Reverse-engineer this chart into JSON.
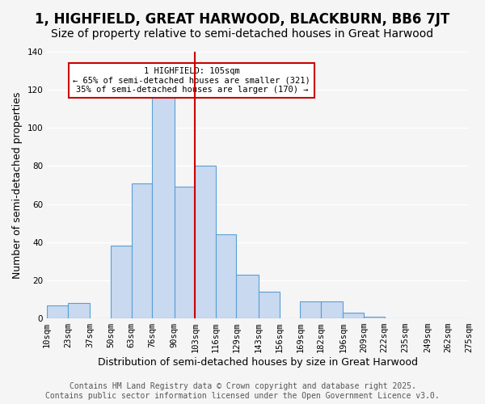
{
  "title": "1, HIGHFIELD, GREAT HARWOOD, BLACKBURN, BB6 7JT",
  "subtitle": "Size of property relative to semi-detached houses in Great Harwood",
  "xlabel": "Distribution of semi-detached houses by size in Great Harwood",
  "ylabel": "Number of semi-detached properties",
  "bar_color": "#c8d9f0",
  "bar_edge_color": "#5a9fd4",
  "background_color": "#f5f5f5",
  "grid_color": "#ffffff",
  "vline_value": 103,
  "vline_color": "#cc0000",
  "annotation_text": "1 HIGHFIELD: 105sqm\n← 65% of semi-detached houses are smaller (321)\n35% of semi-detached houses are larger (170) →",
  "annotation_box_color": "#ffffff",
  "annotation_box_edge_color": "#cc0000",
  "bin_edges": [
    10,
    23,
    37,
    50,
    63,
    76,
    90,
    103,
    116,
    129,
    143,
    156,
    169,
    182,
    196,
    209,
    222,
    235,
    249,
    262,
    275
  ],
  "bin_counts": [
    7,
    8,
    0,
    38,
    71,
    118,
    69,
    80,
    44,
    23,
    14,
    0,
    9,
    9,
    3,
    1,
    0,
    0,
    0,
    0
  ],
  "tick_labels": [
    "10sqm",
    "23sqm",
    "37sqm",
    "50sqm",
    "63sqm",
    "76sqm",
    "90sqm",
    "103sqm",
    "116sqm",
    "129sqm",
    "143sqm",
    "156sqm",
    "169sqm",
    "182sqm",
    "196sqm",
    "209sqm",
    "222sqm",
    "235sqm",
    "249sqm",
    "262sqm",
    "275sqm"
  ],
  "ylim": [
    0,
    140
  ],
  "yticks": [
    0,
    20,
    40,
    60,
    80,
    100,
    120,
    140
  ],
  "footer_text": "Contains HM Land Registry data © Crown copyright and database right 2025.\nContains public sector information licensed under the Open Government Licence v3.0.",
  "title_fontsize": 12,
  "subtitle_fontsize": 10,
  "xlabel_fontsize": 9,
  "ylabel_fontsize": 9,
  "tick_fontsize": 7.5,
  "footer_fontsize": 7
}
